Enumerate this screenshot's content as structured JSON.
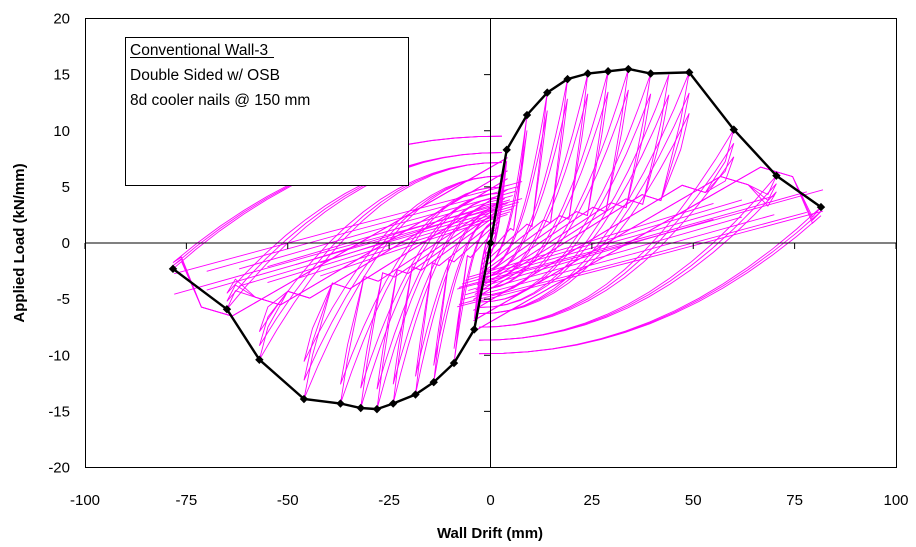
{
  "chart_data": {
    "type": "scatter",
    "xlabel": "Wall Drift (mm)",
    "ylabel": "Applied Load (kN/mm)",
    "xlim": [
      -100,
      100
    ],
    "ylim": [
      -20,
      20
    ],
    "xticks": [
      -100,
      -75,
      -50,
      -25,
      0,
      25,
      50,
      75,
      100
    ],
    "yticks": [
      -20,
      -15,
      -10,
      -5,
      0,
      5,
      10,
      15,
      20
    ],
    "grid": false,
    "legend": {
      "placement": "top-left",
      "lines": [
        "Conventional Wall-3",
        "Double Sided w/ OSB",
        "8d cooler nails @ 150 mm"
      ]
    },
    "series": [
      {
        "color": "#000000",
        "marker": "diamond",
        "x": [
          -78.3,
          -65,
          -57,
          -46,
          -37,
          -32,
          -28,
          -24,
          -18.5,
          -14,
          -9,
          -4,
          0,
          4,
          9,
          14,
          19,
          24,
          29,
          34,
          39.5,
          49,
          60,
          70.5,
          81.5
        ],
        "y": [
          -2.3,
          -5.9,
          -10.4,
          -13.9,
          -14.3,
          -14.7,
          -14.8,
          -14.3,
          -13.5,
          -12.4,
          -10.7,
          -7.7,
          0,
          8.3,
          11.4,
          13.4,
          14.6,
          15.1,
          15.3,
          15.5,
          15.1,
          15.2,
          10.1,
          6.0,
          3.2
        ]
      },
      {
        "color": "#ff00ff",
        "cycle_peaks": [
          [
            4,
            8.3
          ],
          [
            9,
            11.4
          ],
          [
            14,
            13.4
          ],
          [
            19,
            14.6
          ],
          [
            24,
            15.1
          ],
          [
            29,
            15.3
          ],
          [
            34,
            15.5
          ],
          [
            39.5,
            15.1
          ],
          [
            44,
            15.0
          ],
          [
            49,
            15.2
          ],
          [
            60,
            10.1
          ],
          [
            70.5,
            6.0
          ],
          [
            81.5,
            3.2
          ],
          [
            -4,
            -7.7
          ],
          [
            -9,
            -10.7
          ],
          [
            -14,
            -12.4
          ],
          [
            -18.5,
            -13.5
          ],
          [
            -24,
            -14.3
          ],
          [
            -28,
            -14.8
          ],
          [
            -32,
            -14.7
          ],
          [
            -37,
            -14.3
          ],
          [
            -46,
            -13.9
          ],
          [
            -57,
            -10.4
          ],
          [
            -65,
            -5.9
          ],
          [
            -78.3,
            -2.3
          ]
        ]
      }
    ]
  }
}
